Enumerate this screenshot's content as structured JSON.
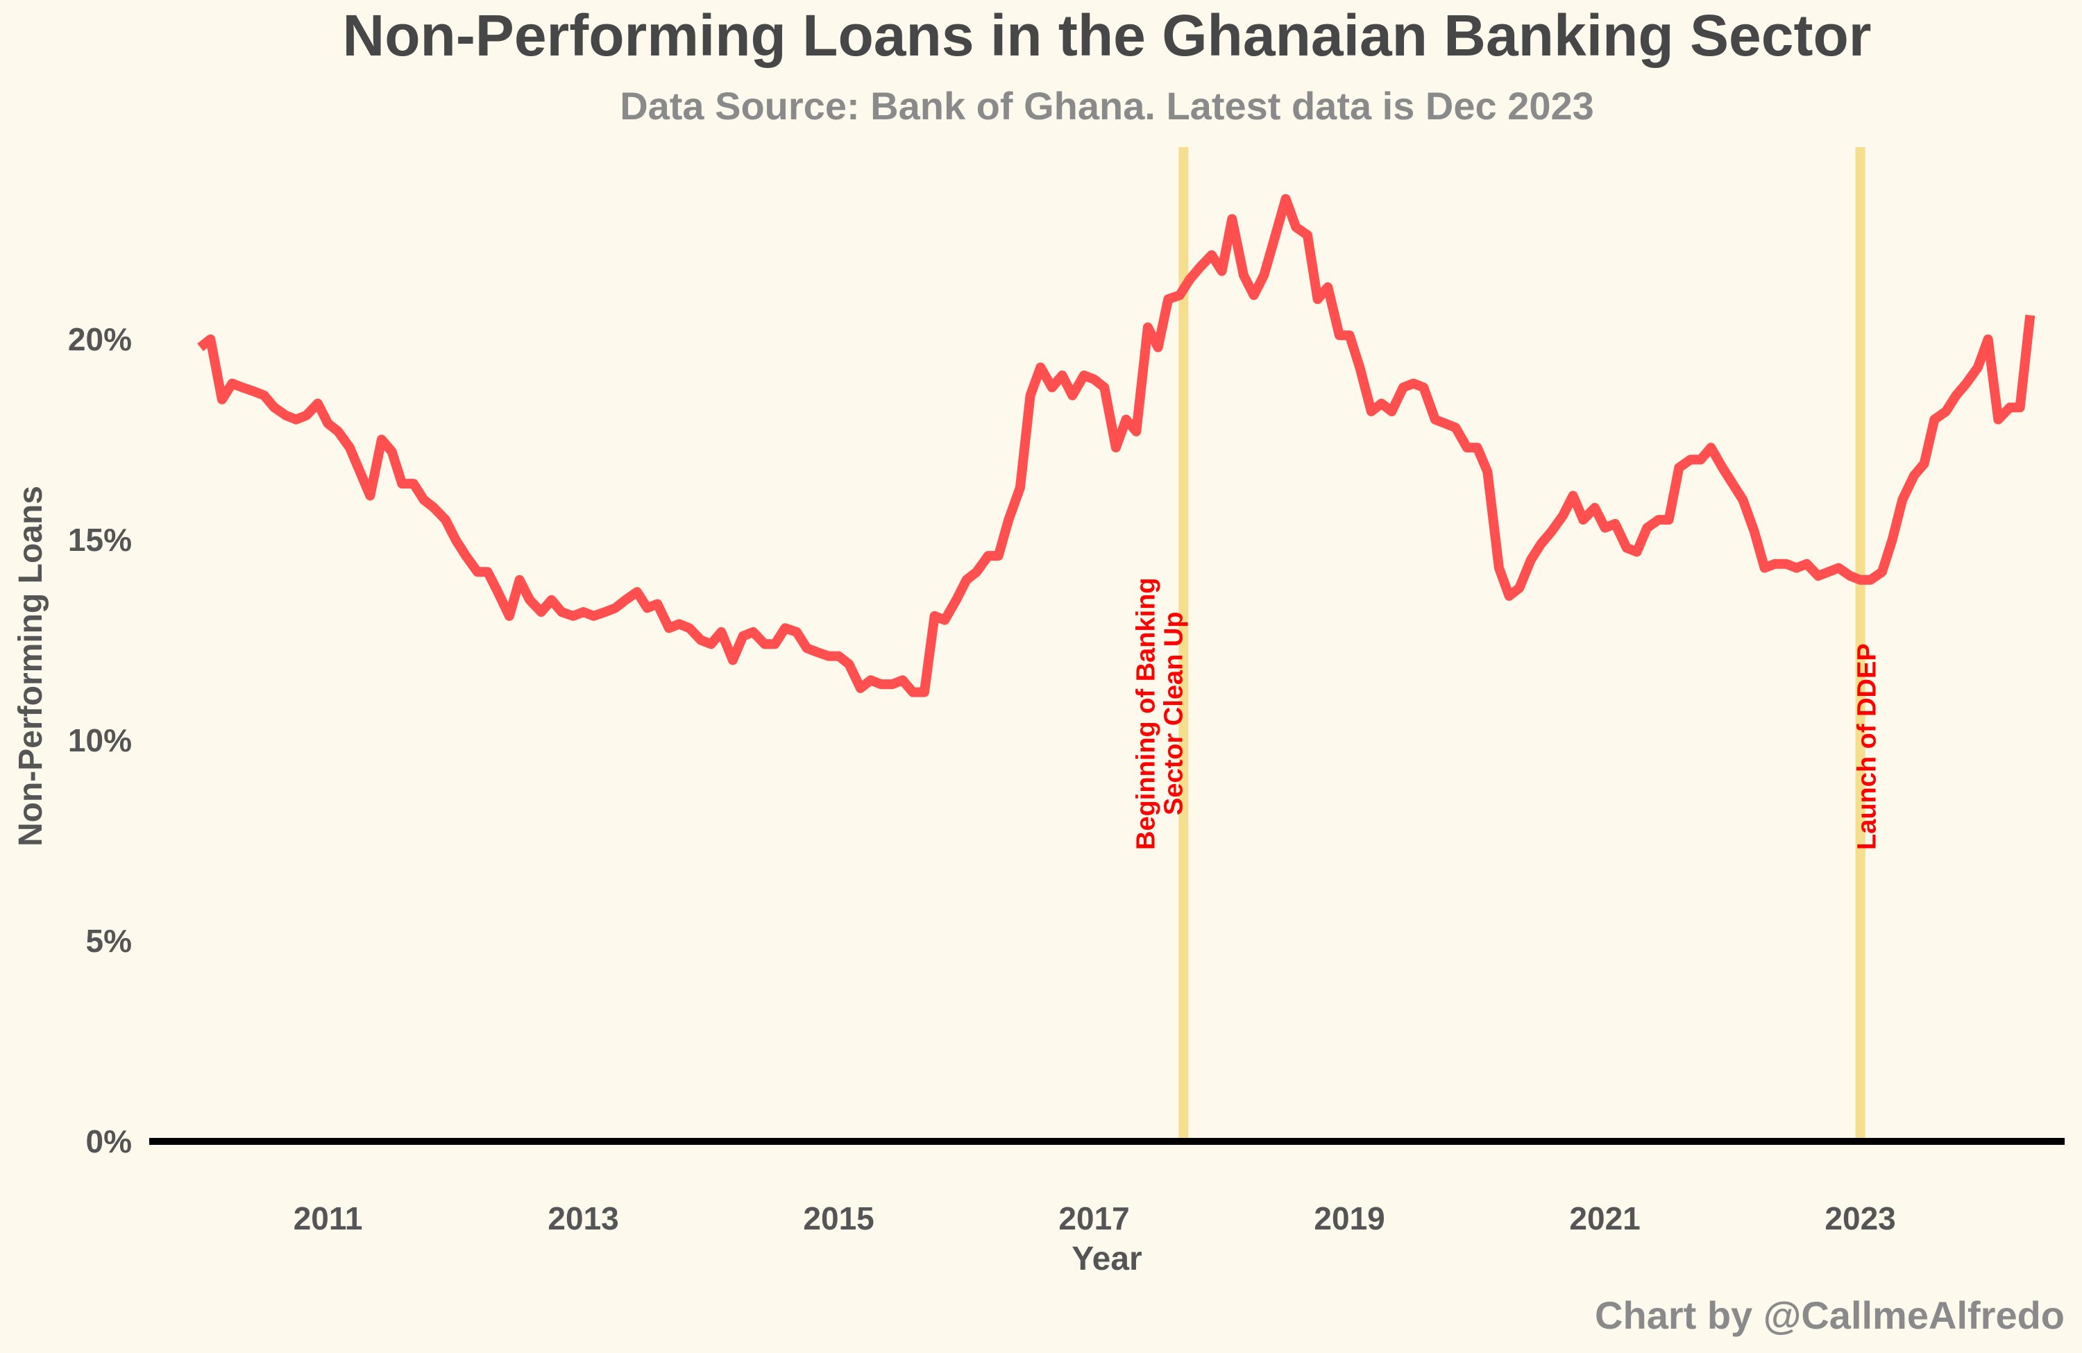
{
  "chart_data": {
    "type": "line",
    "title": "Non-Performing Loans in the Ghanaian Banking Sector",
    "subtitle": "Data Source: Bank of Ghana. Latest data is Dec 2023",
    "xlabel": "Year",
    "ylabel": "Non-Performing Loans",
    "credit": "Chart by @CallmeAlfredo",
    "xlim": [
      2009.6,
      2024.6
    ],
    "ylim": [
      0,
      25
    ],
    "y_ticks": [
      {
        "value": 0,
        "label": "0%"
      },
      {
        "value": 5,
        "label": "5%"
      },
      {
        "value": 10,
        "label": "10%"
      },
      {
        "value": 15,
        "label": "15%"
      },
      {
        "value": 20,
        "label": "20%"
      }
    ],
    "x_ticks": [
      {
        "value": 2011,
        "label": "2011"
      },
      {
        "value": 2013,
        "label": "2013"
      },
      {
        "value": 2015,
        "label": "2015"
      },
      {
        "value": 2017,
        "label": "2017"
      },
      {
        "value": 2019,
        "label": "2019"
      },
      {
        "value": 2021,
        "label": "2021"
      },
      {
        "value": 2023,
        "label": "2023"
      }
    ],
    "grid": false,
    "line_color": "#ff4f4f",
    "event_line_color": "#f5de8e",
    "annotation_color": "#ff0000",
    "events": [
      {
        "x": 2017.7,
        "lines": [
          "Beginning of Banking",
          "Sector Clean Up"
        ]
      },
      {
        "x": 2023.0,
        "lines": [
          "Launch of DDEP"
        ]
      }
    ],
    "series": [
      {
        "points": [
          [
            2010.0,
            19.8
          ],
          [
            2010.08,
            20.0
          ],
          [
            2010.17,
            18.5
          ],
          [
            2010.25,
            18.9
          ],
          [
            2010.33,
            18.8
          ],
          [
            2010.42,
            18.7
          ],
          [
            2010.5,
            18.6
          ],
          [
            2010.58,
            18.3
          ],
          [
            2010.67,
            18.1
          ],
          [
            2010.75,
            18.0
          ],
          [
            2010.83,
            18.1
          ],
          [
            2010.92,
            18.4
          ],
          [
            2011.0,
            17.9
          ],
          [
            2011.08,
            17.7
          ],
          [
            2011.17,
            17.3
          ],
          [
            2011.25,
            16.7
          ],
          [
            2011.33,
            16.1
          ],
          [
            2011.42,
            17.5
          ],
          [
            2011.5,
            17.2
          ],
          [
            2011.58,
            16.4
          ],
          [
            2011.67,
            16.4
          ],
          [
            2011.75,
            16.0
          ],
          [
            2011.83,
            15.8
          ],
          [
            2011.92,
            15.5
          ],
          [
            2012.0,
            15.0
          ],
          [
            2012.08,
            14.6
          ],
          [
            2012.17,
            14.2
          ],
          [
            2012.25,
            14.2
          ],
          [
            2012.33,
            13.7
          ],
          [
            2012.42,
            13.1
          ],
          [
            2012.5,
            14.0
          ],
          [
            2012.58,
            13.5
          ],
          [
            2012.67,
            13.2
          ],
          [
            2012.75,
            13.5
          ],
          [
            2012.83,
            13.2
          ],
          [
            2012.92,
            13.1
          ],
          [
            2013.0,
            13.2
          ],
          [
            2013.08,
            13.1
          ],
          [
            2013.17,
            13.2
          ],
          [
            2013.25,
            13.3
          ],
          [
            2013.33,
            13.5
          ],
          [
            2013.42,
            13.7
          ],
          [
            2013.5,
            13.3
          ],
          [
            2013.58,
            13.4
          ],
          [
            2013.67,
            12.8
          ],
          [
            2013.75,
            12.9
          ],
          [
            2013.83,
            12.8
          ],
          [
            2013.92,
            12.5
          ],
          [
            2014.0,
            12.4
          ],
          [
            2014.08,
            12.7
          ],
          [
            2014.17,
            12.0
          ],
          [
            2014.25,
            12.6
          ],
          [
            2014.33,
            12.7
          ],
          [
            2014.42,
            12.4
          ],
          [
            2014.5,
            12.4
          ],
          [
            2014.58,
            12.8
          ],
          [
            2014.67,
            12.7
          ],
          [
            2014.75,
            12.3
          ],
          [
            2014.83,
            12.2
          ],
          [
            2014.92,
            12.1
          ],
          [
            2015.0,
            12.1
          ],
          [
            2015.08,
            11.9
          ],
          [
            2015.17,
            11.3
          ],
          [
            2015.25,
            11.5
          ],
          [
            2015.33,
            11.4
          ],
          [
            2015.42,
            11.4
          ],
          [
            2015.5,
            11.5
          ],
          [
            2015.58,
            11.2
          ],
          [
            2015.67,
            11.2
          ],
          [
            2015.75,
            13.1
          ],
          [
            2015.83,
            13.0
          ],
          [
            2015.92,
            13.5
          ],
          [
            2016.0,
            14.0
          ],
          [
            2016.08,
            14.2
          ],
          [
            2016.17,
            14.6
          ],
          [
            2016.25,
            14.6
          ],
          [
            2016.33,
            15.5
          ],
          [
            2016.42,
            16.3
          ],
          [
            2016.5,
            18.6
          ],
          [
            2016.58,
            19.3
          ],
          [
            2016.67,
            18.8
          ],
          [
            2016.75,
            19.1
          ],
          [
            2016.83,
            18.6
          ],
          [
            2016.92,
            19.1
          ],
          [
            2017.0,
            19.0
          ],
          [
            2017.08,
            18.8
          ],
          [
            2017.17,
            17.3
          ],
          [
            2017.25,
            18.0
          ],
          [
            2017.33,
            17.7
          ],
          [
            2017.42,
            20.3
          ],
          [
            2017.5,
            19.8
          ],
          [
            2017.58,
            21.0
          ],
          [
            2017.67,
            21.1
          ],
          [
            2017.75,
            21.5
          ],
          [
            2017.83,
            21.8
          ],
          [
            2017.92,
            22.1
          ],
          [
            2018.0,
            21.7
          ],
          [
            2018.08,
            23.0
          ],
          [
            2018.17,
            21.6
          ],
          [
            2018.25,
            21.1
          ],
          [
            2018.33,
            21.6
          ],
          [
            2018.42,
            22.6
          ],
          [
            2018.5,
            23.5
          ],
          [
            2018.58,
            22.8
          ],
          [
            2018.67,
            22.6
          ],
          [
            2018.75,
            21.0
          ],
          [
            2018.83,
            21.3
          ],
          [
            2018.92,
            20.1
          ],
          [
            2019.0,
            20.1
          ],
          [
            2019.08,
            19.3
          ],
          [
            2019.17,
            18.2
          ],
          [
            2019.25,
            18.4
          ],
          [
            2019.33,
            18.2
          ],
          [
            2019.42,
            18.8
          ],
          [
            2019.5,
            18.9
          ],
          [
            2019.58,
            18.8
          ],
          [
            2019.67,
            18.0
          ],
          [
            2019.75,
            17.9
          ],
          [
            2019.83,
            17.8
          ],
          [
            2019.92,
            17.3
          ],
          [
            2020.0,
            17.3
          ],
          [
            2020.08,
            16.7
          ],
          [
            2020.17,
            14.3
          ],
          [
            2020.25,
            13.6
          ],
          [
            2020.33,
            13.8
          ],
          [
            2020.42,
            14.5
          ],
          [
            2020.5,
            14.9
          ],
          [
            2020.58,
            15.2
          ],
          [
            2020.67,
            15.6
          ],
          [
            2020.75,
            16.1
          ],
          [
            2020.83,
            15.5
          ],
          [
            2020.92,
            15.8
          ],
          [
            2021.0,
            15.3
          ],
          [
            2021.08,
            15.4
          ],
          [
            2021.17,
            14.8
          ],
          [
            2021.25,
            14.7
          ],
          [
            2021.33,
            15.3
          ],
          [
            2021.42,
            15.5
          ],
          [
            2021.5,
            15.5
          ],
          [
            2021.58,
            16.8
          ],
          [
            2021.67,
            17.0
          ],
          [
            2021.75,
            17.0
          ],
          [
            2021.83,
            17.3
          ],
          [
            2021.92,
            16.8
          ],
          [
            2022.0,
            16.4
          ],
          [
            2022.08,
            16.0
          ],
          [
            2022.17,
            15.2
          ],
          [
            2022.25,
            14.3
          ],
          [
            2022.33,
            14.4
          ],
          [
            2022.42,
            14.4
          ],
          [
            2022.5,
            14.3
          ],
          [
            2022.58,
            14.4
          ],
          [
            2022.67,
            14.1
          ],
          [
            2022.75,
            14.2
          ],
          [
            2022.83,
            14.3
          ],
          [
            2022.92,
            14.1
          ],
          [
            2023.0,
            14.0
          ],
          [
            2023.08,
            14.0
          ],
          [
            2023.17,
            14.2
          ],
          [
            2023.25,
            15.0
          ],
          [
            2023.33,
            16.0
          ],
          [
            2023.42,
            16.6
          ],
          [
            2023.5,
            16.9
          ],
          [
            2023.58,
            18.0
          ],
          [
            2023.67,
            18.2
          ],
          [
            2023.75,
            18.6
          ],
          [
            2023.83,
            18.9
          ],
          [
            2023.92,
            19.3
          ],
          [
            2024.0,
            20.0
          ],
          [
            2024.08,
            18.0
          ],
          [
            2024.17,
            18.3
          ],
          [
            2024.25,
            18.3
          ],
          [
            2024.33,
            20.6
          ]
        ]
      }
    ]
  }
}
